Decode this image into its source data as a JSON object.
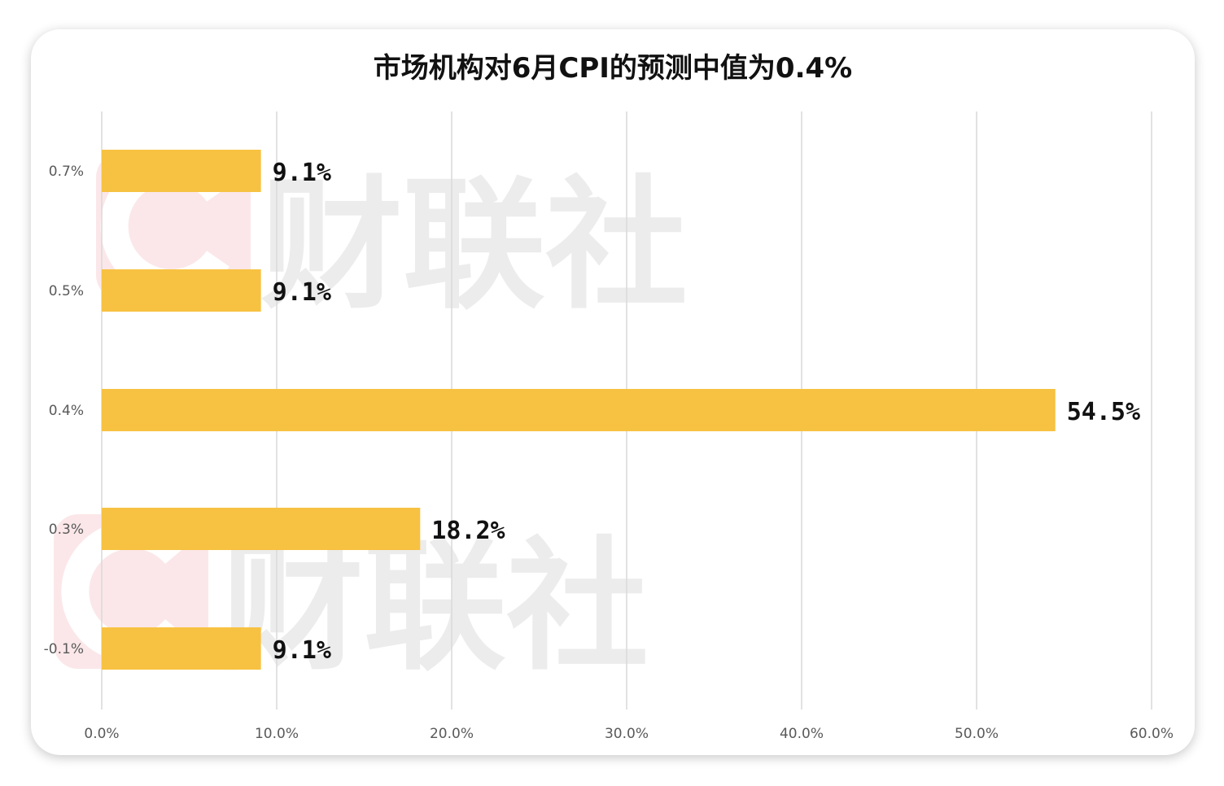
{
  "chart_data": {
    "type": "bar",
    "orientation": "horizontal",
    "title": "市场机构对6月CPI的预测中值为0.4%",
    "categories": [
      "0.7%",
      "0.5%",
      "0.4%",
      "0.3%",
      "-0.1%"
    ],
    "values": [
      9.1,
      9.1,
      54.5,
      18.2,
      9.1
    ],
    "data_labels": [
      "9.1%",
      "9.1%",
      "54.5%",
      "18.2%",
      "9.1%"
    ],
    "x_ticks": [
      "0.0%",
      "10.0%",
      "20.0%",
      "30.0%",
      "40.0%",
      "50.0%",
      "60.0%"
    ],
    "xlim": [
      0,
      60
    ],
    "grid": "vertical",
    "legend": "none"
  },
  "colors": {
    "bar": "#F7C242",
    "grid": "#d9d9d9",
    "tick_text": "#595959",
    "label_text": "#111111"
  },
  "watermark": {
    "text": "财联社",
    "icon": "c-logo-icon"
  }
}
